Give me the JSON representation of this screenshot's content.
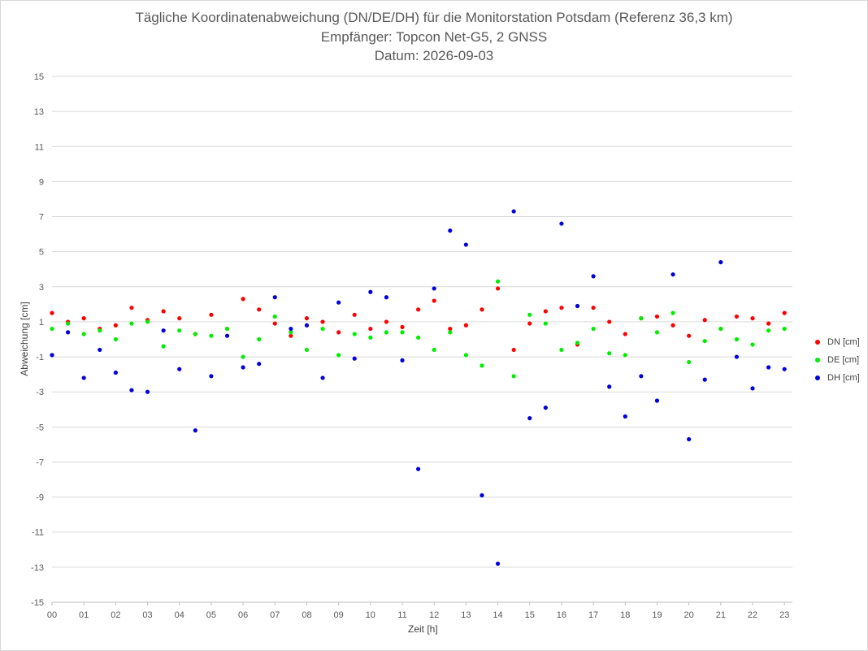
{
  "chart_data": {
    "type": "scatter",
    "title": "Tägliche Koordinatenabweichung (DN/DE/DH) für die Monitorstation Potsdam (Referenz 36,3 km)",
    "subtitle": "Empfänger: Topcon Net-G5, 2 GNSS",
    "date_line": "Datum: 2026-09-03",
    "xlabel": "Zeit [h]",
    "ylabel": "Abweichung [cm]",
    "xlim": [
      0,
      23.25
    ],
    "ylim": [
      -15,
      15
    ],
    "x_ticks": [
      "00",
      "01",
      "02",
      "03",
      "04",
      "05",
      "06",
      "07",
      "08",
      "09",
      "10",
      "11",
      "12",
      "13",
      "14",
      "15",
      "16",
      "17",
      "18",
      "19",
      "20",
      "21",
      "22",
      "23"
    ],
    "y_ticks": [
      15,
      13,
      11,
      9,
      7,
      5,
      3,
      1,
      -1,
      -3,
      -5,
      -7,
      -9,
      -11,
      -13,
      -15
    ],
    "grid": "horizontal",
    "legend_position": "right",
    "series": [
      {
        "name": "DN [cm]",
        "color": "#ff0000",
        "x": [
          0.0,
          0.5,
          1.0,
          1.5,
          2.0,
          2.5,
          3.0,
          3.5,
          4.0,
          4.5,
          5.0,
          5.5,
          6.0,
          6.5,
          7.0,
          7.5,
          8.0,
          8.5,
          9.0,
          9.5,
          10.0,
          10.5,
          11.0,
          11.5,
          12.0,
          12.5,
          13.0,
          13.5,
          14.0,
          14.5,
          15.0,
          15.5,
          16.0,
          16.5,
          17.0,
          17.5,
          18.0,
          18.5,
          19.0,
          19.5,
          20.0,
          20.5,
          21.0,
          21.5,
          22.0,
          22.5,
          23.0
        ],
        "y": [
          1.5,
          1.0,
          1.2,
          0.6,
          0.8,
          1.8,
          1.1,
          1.6,
          1.2,
          0.3,
          1.4,
          0.6,
          2.3,
          1.7,
          0.9,
          0.2,
          1.2,
          1.0,
          0.4,
          1.4,
          0.6,
          1.0,
          0.7,
          1.7,
          2.2,
          0.6,
          0.8,
          1.7,
          2.9,
          -0.6,
          0.9,
          1.6,
          1.8,
          -0.3,
          1.8,
          1.0,
          0.3,
          1.2,
          1.3,
          0.8,
          0.2,
          1.1,
          0.6,
          1.3,
          1.2,
          0.9,
          1.5
        ]
      },
      {
        "name": "DE [cm]",
        "color": "#00ee00",
        "x": [
          0.0,
          0.5,
          1.0,
          1.5,
          2.0,
          2.5,
          3.0,
          3.5,
          4.0,
          4.5,
          5.0,
          5.5,
          6.0,
          6.5,
          7.0,
          7.5,
          8.0,
          8.5,
          9.0,
          9.5,
          10.0,
          10.5,
          11.0,
          11.5,
          12.0,
          12.5,
          13.0,
          13.5,
          14.0,
          14.5,
          15.0,
          15.5,
          16.0,
          16.5,
          17.0,
          17.5,
          18.0,
          18.5,
          19.0,
          19.5,
          20.0,
          20.5,
          21.0,
          21.5,
          22.0,
          22.5,
          23.0
        ],
        "y": [
          0.6,
          0.9,
          0.3,
          0.5,
          0.0,
          0.9,
          1.0,
          -0.4,
          0.5,
          0.3,
          0.2,
          0.6,
          -1.0,
          0.0,
          1.3,
          0.4,
          -0.6,
          0.6,
          -0.9,
          0.3,
          0.1,
          0.4,
          0.4,
          0.1,
          -0.6,
          0.4,
          -0.9,
          -1.5,
          3.3,
          -2.1,
          1.4,
          0.9,
          -0.6,
          -0.2,
          0.6,
          -0.8,
          -0.9,
          1.2,
          0.4,
          1.5,
          -1.3,
          -0.1,
          0.6,
          0.0,
          -0.3,
          0.5,
          0.6
        ]
      },
      {
        "name": "DH [cm]",
        "color": "#0000dd",
        "x": [
          0.0,
          0.5,
          1.0,
          1.5,
          2.0,
          2.5,
          3.0,
          3.5,
          4.0,
          4.5,
          5.0,
          5.5,
          6.0,
          6.5,
          7.0,
          7.5,
          8.0,
          8.5,
          9.0,
          9.5,
          10.0,
          10.5,
          11.0,
          11.5,
          12.0,
          12.5,
          13.0,
          13.5,
          14.0,
          14.5,
          15.0,
          15.5,
          16.0,
          16.5,
          17.0,
          17.5,
          18.0,
          18.5,
          19.0,
          19.5,
          20.0,
          20.5,
          21.0,
          21.5,
          22.0,
          22.5,
          23.0
        ],
        "y": [
          -0.9,
          0.4,
          -2.2,
          -0.6,
          -1.9,
          -2.9,
          -3.0,
          0.5,
          -1.7,
          -5.2,
          -2.1,
          0.2,
          -1.6,
          -1.4,
          2.4,
          0.6,
          0.8,
          -2.2,
          2.1,
          -1.1,
          2.7,
          2.4,
          -1.2,
          -7.4,
          2.9,
          6.2,
          5.4,
          -8.9,
          -12.8,
          7.3,
          -4.5,
          -3.9,
          6.6,
          1.9,
          3.6,
          -2.7,
          -4.4,
          -2.1,
          -3.5,
          3.7,
          -5.7,
          -2.3,
          4.4,
          -1.0,
          -2.8,
          -1.6,
          -1.7
        ]
      }
    ]
  }
}
